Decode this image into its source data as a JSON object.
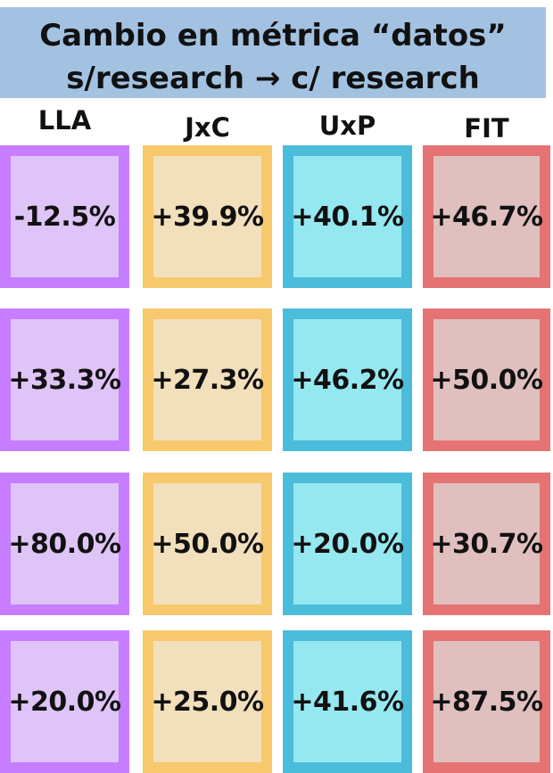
{
  "title": {
    "line1": "Cambio en métrica “datos”",
    "line2": "s/research → c/ research"
  },
  "chart_data": {
    "type": "table",
    "columns": [
      {
        "name": "LLA",
        "border": "#c77dff",
        "fill": "#dfc4f7"
      },
      {
        "name": "JxC",
        "border": "#f7c96c",
        "fill": "#f2dfbb"
      },
      {
        "name": "UxP",
        "border": "#4bbcd9",
        "fill": "#95e8f0"
      },
      {
        "name": "FIT",
        "border": "#e57373",
        "fill": "#e0bfbf"
      }
    ],
    "rows": [
      [
        "-12.5%",
        "+39.9%",
        "+40.1%",
        "+46.7%"
      ],
      [
        "+33.3%",
        "+27.3%",
        "+46.2%",
        "+50.0%"
      ],
      [
        "+80.0%",
        "+50.0%",
        "+20.0%",
        "+30.7%"
      ],
      [
        "+20.0%",
        "+25.0%",
        "+41.6%",
        "+87.5%"
      ]
    ],
    "values": [
      [
        -12.5,
        39.9,
        40.1,
        46.7
      ],
      [
        33.3,
        27.3,
        46.2,
        50.0
      ],
      [
        80.0,
        50.0,
        20.0,
        30.7
      ],
      [
        20.0,
        25.0,
        41.6,
        87.5
      ]
    ]
  }
}
